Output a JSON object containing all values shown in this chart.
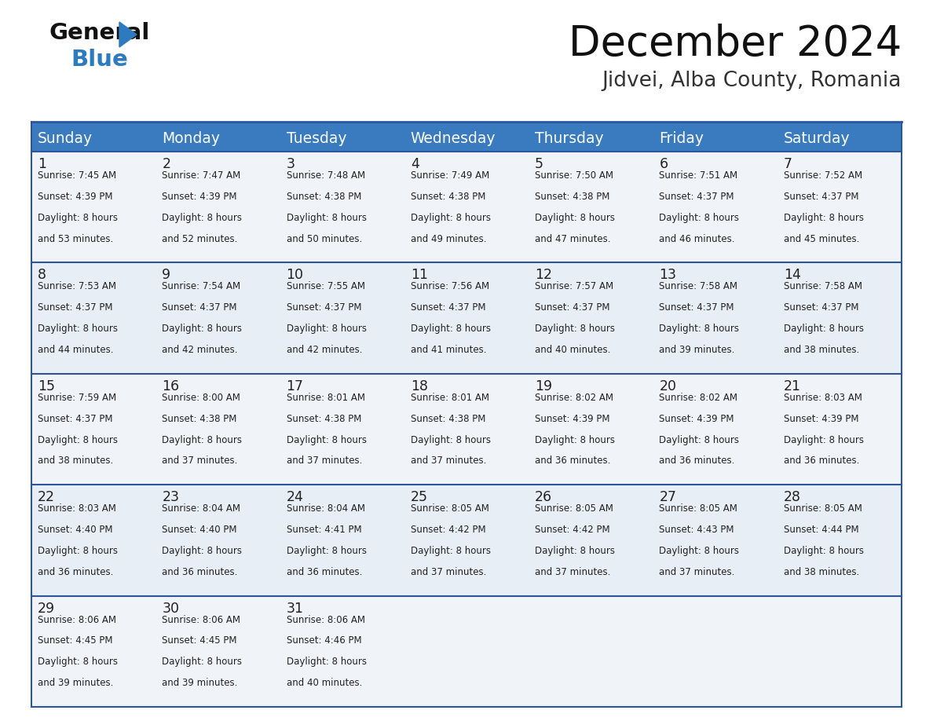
{
  "title": "December 2024",
  "subtitle": "Jidvei, Alba County, Romania",
  "header_color": "#3a7bbf",
  "header_text_color": "#ffffff",
  "cell_bg_even": "#f0f4f8",
  "cell_bg_odd": "#e8eef5",
  "border_color": "#2b579a",
  "text_color": "#222222",
  "days_of_week": [
    "Sunday",
    "Monday",
    "Tuesday",
    "Wednesday",
    "Thursday",
    "Friday",
    "Saturday"
  ],
  "logo_general_color": "#111111",
  "logo_blue_color": "#2e7abf",
  "logo_triangle_color": "#2e7abf",
  "title_color": "#111111",
  "subtitle_color": "#333333",
  "calendar_data": [
    [
      {
        "day": "1",
        "sunrise": "7:45 AM",
        "sunset": "4:39 PM",
        "daylight_line1": "Daylight: 8 hours",
        "daylight_line2": "and 53 minutes."
      },
      {
        "day": "2",
        "sunrise": "7:47 AM",
        "sunset": "4:39 PM",
        "daylight_line1": "Daylight: 8 hours",
        "daylight_line2": "and 52 minutes."
      },
      {
        "day": "3",
        "sunrise": "7:48 AM",
        "sunset": "4:38 PM",
        "daylight_line1": "Daylight: 8 hours",
        "daylight_line2": "and 50 minutes."
      },
      {
        "day": "4",
        "sunrise": "7:49 AM",
        "sunset": "4:38 PM",
        "daylight_line1": "Daylight: 8 hours",
        "daylight_line2": "and 49 minutes."
      },
      {
        "day": "5",
        "sunrise": "7:50 AM",
        "sunset": "4:38 PM",
        "daylight_line1": "Daylight: 8 hours",
        "daylight_line2": "and 47 minutes."
      },
      {
        "day": "6",
        "sunrise": "7:51 AM",
        "sunset": "4:37 PM",
        "daylight_line1": "Daylight: 8 hours",
        "daylight_line2": "and 46 minutes."
      },
      {
        "day": "7",
        "sunrise": "7:52 AM",
        "sunset": "4:37 PM",
        "daylight_line1": "Daylight: 8 hours",
        "daylight_line2": "and 45 minutes."
      }
    ],
    [
      {
        "day": "8",
        "sunrise": "7:53 AM",
        "sunset": "4:37 PM",
        "daylight_line1": "Daylight: 8 hours",
        "daylight_line2": "and 44 minutes."
      },
      {
        "day": "9",
        "sunrise": "7:54 AM",
        "sunset": "4:37 PM",
        "daylight_line1": "Daylight: 8 hours",
        "daylight_line2": "and 42 minutes."
      },
      {
        "day": "10",
        "sunrise": "7:55 AM",
        "sunset": "4:37 PM",
        "daylight_line1": "Daylight: 8 hours",
        "daylight_line2": "and 42 minutes."
      },
      {
        "day": "11",
        "sunrise": "7:56 AM",
        "sunset": "4:37 PM",
        "daylight_line1": "Daylight: 8 hours",
        "daylight_line2": "and 41 minutes."
      },
      {
        "day": "12",
        "sunrise": "7:57 AM",
        "sunset": "4:37 PM",
        "daylight_line1": "Daylight: 8 hours",
        "daylight_line2": "and 40 minutes."
      },
      {
        "day": "13",
        "sunrise": "7:58 AM",
        "sunset": "4:37 PM",
        "daylight_line1": "Daylight: 8 hours",
        "daylight_line2": "and 39 minutes."
      },
      {
        "day": "14",
        "sunrise": "7:58 AM",
        "sunset": "4:37 PM",
        "daylight_line1": "Daylight: 8 hours",
        "daylight_line2": "and 38 minutes."
      }
    ],
    [
      {
        "day": "15",
        "sunrise": "7:59 AM",
        "sunset": "4:37 PM",
        "daylight_line1": "Daylight: 8 hours",
        "daylight_line2": "and 38 minutes."
      },
      {
        "day": "16",
        "sunrise": "8:00 AM",
        "sunset": "4:38 PM",
        "daylight_line1": "Daylight: 8 hours",
        "daylight_line2": "and 37 minutes."
      },
      {
        "day": "17",
        "sunrise": "8:01 AM",
        "sunset": "4:38 PM",
        "daylight_line1": "Daylight: 8 hours",
        "daylight_line2": "and 37 minutes."
      },
      {
        "day": "18",
        "sunrise": "8:01 AM",
        "sunset": "4:38 PM",
        "daylight_line1": "Daylight: 8 hours",
        "daylight_line2": "and 37 minutes."
      },
      {
        "day": "19",
        "sunrise": "8:02 AM",
        "sunset": "4:39 PM",
        "daylight_line1": "Daylight: 8 hours",
        "daylight_line2": "and 36 minutes."
      },
      {
        "day": "20",
        "sunrise": "8:02 AM",
        "sunset": "4:39 PM",
        "daylight_line1": "Daylight: 8 hours",
        "daylight_line2": "and 36 minutes."
      },
      {
        "day": "21",
        "sunrise": "8:03 AM",
        "sunset": "4:39 PM",
        "daylight_line1": "Daylight: 8 hours",
        "daylight_line2": "and 36 minutes."
      }
    ],
    [
      {
        "day": "22",
        "sunrise": "8:03 AM",
        "sunset": "4:40 PM",
        "daylight_line1": "Daylight: 8 hours",
        "daylight_line2": "and 36 minutes."
      },
      {
        "day": "23",
        "sunrise": "8:04 AM",
        "sunset": "4:40 PM",
        "daylight_line1": "Daylight: 8 hours",
        "daylight_line2": "and 36 minutes."
      },
      {
        "day": "24",
        "sunrise": "8:04 AM",
        "sunset": "4:41 PM",
        "daylight_line1": "Daylight: 8 hours",
        "daylight_line2": "and 36 minutes."
      },
      {
        "day": "25",
        "sunrise": "8:05 AM",
        "sunset": "4:42 PM",
        "daylight_line1": "Daylight: 8 hours",
        "daylight_line2": "and 37 minutes."
      },
      {
        "day": "26",
        "sunrise": "8:05 AM",
        "sunset": "4:42 PM",
        "daylight_line1": "Daylight: 8 hours",
        "daylight_line2": "and 37 minutes."
      },
      {
        "day": "27",
        "sunrise": "8:05 AM",
        "sunset": "4:43 PM",
        "daylight_line1": "Daylight: 8 hours",
        "daylight_line2": "and 37 minutes."
      },
      {
        "day": "28",
        "sunrise": "8:05 AM",
        "sunset": "4:44 PM",
        "daylight_line1": "Daylight: 8 hours",
        "daylight_line2": "and 38 minutes."
      }
    ],
    [
      {
        "day": "29",
        "sunrise": "8:06 AM",
        "sunset": "4:45 PM",
        "daylight_line1": "Daylight: 8 hours",
        "daylight_line2": "and 39 minutes."
      },
      {
        "day": "30",
        "sunrise": "8:06 AM",
        "sunset": "4:45 PM",
        "daylight_line1": "Daylight: 8 hours",
        "daylight_line2": "and 39 minutes."
      },
      {
        "day": "31",
        "sunrise": "8:06 AM",
        "sunset": "4:46 PM",
        "daylight_line1": "Daylight: 8 hours",
        "daylight_line2": "and 40 minutes."
      },
      null,
      null,
      null,
      null
    ]
  ]
}
